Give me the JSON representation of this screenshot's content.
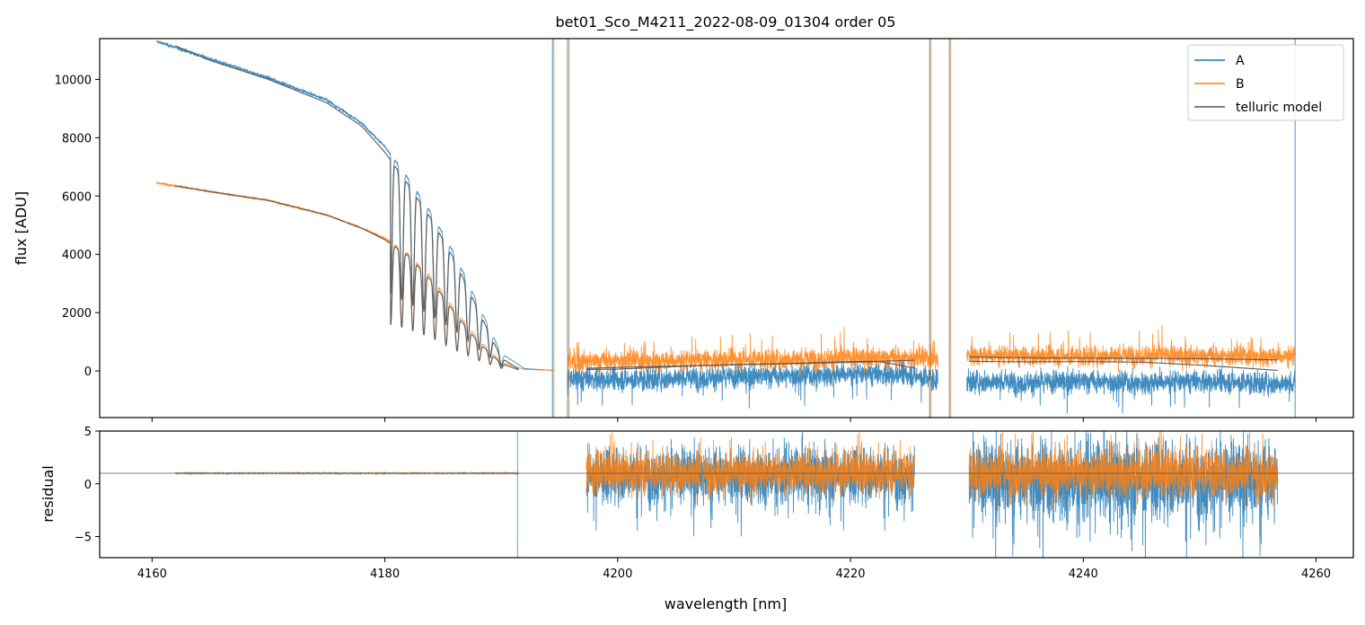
{
  "chart_data": [
    {
      "type": "line",
      "title": "bet01_Sco_M4211_2022-08-09_01304  order 05",
      "xlabel": "",
      "ylabel": "flux [ADU]",
      "xlim": [
        4155.5,
        4263.2
      ],
      "ylim": [
        -1600,
        11400
      ],
      "yticks": [
        0,
        2000,
        4000,
        6000,
        8000,
        10000
      ],
      "legend": {
        "placement": "top-right",
        "entries": [
          "A",
          "B",
          "telluric model"
        ]
      },
      "series": [
        {
          "name": "A",
          "color": "#1f77b4",
          "segments": [
            {
              "x": [
                4160.4,
                4162,
                4165,
                4170,
                4175,
                4178,
                4180,
                4182,
                4184,
                4186,
                4188,
                4190,
                4192,
                4194.5
              ],
              "y": [
                11300,
                11100,
                10700,
                10050,
                9300,
                8500,
                7700,
                6600,
                5400,
                4000,
                2300,
                600,
                80,
                20
              ],
              "absorption_band": [
                4180.5,
                4190.5
              ]
            },
            {
              "x": [
                4195.7,
                4200,
                4205,
                4210,
                4215,
                4220,
                4225,
                4227.5
              ],
              "y": [
                -250,
                -300,
                -250,
                -200,
                -150,
                -100,
                -120,
                -300
              ]
            },
            {
              "x": [
                4230.0,
                4235,
                4240,
                4245,
                4250,
                4255,
                4258.2
              ],
              "y": [
                -350,
                -400,
                -350,
                -400,
                -350,
                -400,
                -450
              ]
            }
          ],
          "spikes_x": [
            4194.4,
            4195.7,
            4226.8,
            4228.5,
            4258.2
          ]
        },
        {
          "name": "B",
          "color": "#ff7f0e",
          "segments": [
            {
              "x": [
                4160.4,
                4162,
                4165,
                4170,
                4175,
                4178,
                4180,
                4182,
                4184,
                4186,
                4188,
                4190,
                4192,
                4194.5
              ],
              "y": [
                6450,
                6350,
                6150,
                5850,
                5350,
                4900,
                4550,
                4000,
                3200,
                2100,
                1100,
                300,
                50,
                20
              ],
              "absorption_band": [
                4180.5,
                4190.5
              ]
            },
            {
              "x": [
                4195.7,
                4200,
                4205,
                4210,
                4215,
                4220,
                4225,
                4227.5
              ],
              "y": [
                300,
                350,
                350,
                400,
                400,
                450,
                450,
                400
              ]
            },
            {
              "x": [
                4230.0,
                4235,
                4240,
                4245,
                4250,
                4255,
                4258.2
              ],
              "y": [
                550,
                500,
                500,
                550,
                500,
                500,
                500
              ]
            }
          ]
        },
        {
          "name": "telluric model",
          "color": "#555555",
          "segments": [
            {
              "x": [
                4162,
                4165,
                4170,
                4175,
                4178,
                4180,
                4182,
                4184,
                4186,
                4188,
                4190,
                4191.5
              ],
              "y": [
                11150,
                10650,
                10000,
                9200,
                8400,
                7500,
                6400,
                5200,
                3800,
                2100,
                450,
                60
              ]
            },
            {
              "x": [
                4162,
                4165,
                4170,
                4175,
                4178,
                4180,
                4182,
                4184,
                4186,
                4188,
                4190,
                4191.5
              ],
              "y": [
                6350,
                6150,
                5850,
                5350,
                4900,
                4500,
                3950,
                3100,
                2000,
                1000,
                250,
                40
              ]
            },
            {
              "x": [
                4197.3,
                4200,
                4205,
                4210,
                4215,
                4220,
                4222.5,
                4225.5
              ],
              "y": [
                90,
                120,
                170,
                210,
                260,
                320,
                330,
                370
              ]
            },
            {
              "x": [
                4197.3,
                4200,
                4205,
                4210,
                4215,
                4220,
                4222.5,
                4225.5
              ],
              "y": [
                50,
                60,
                150,
                220,
                250,
                300,
                320,
                100
              ]
            },
            {
              "x": [
                4230.2,
                4235,
                4240,
                4245,
                4250,
                4256.7
              ],
              "y": [
                480,
                450,
                440,
                430,
                420,
                380
              ]
            },
            {
              "x": [
                4230.2,
                4235,
                4240,
                4245,
                4250,
                4256.7
              ],
              "y": [
                330,
                310,
                320,
                300,
                200,
                20
              ]
            }
          ]
        }
      ]
    },
    {
      "type": "line",
      "title": "",
      "xlabel": "wavelength [nm]",
      "ylabel": "residual",
      "xlim": [
        4155.5,
        4263.2
      ],
      "ylim": [
        -7,
        5
      ],
      "xticks": [
        4160,
        4180,
        4200,
        4220,
        4240,
        4260
      ],
      "yticks": [
        -5,
        0,
        5
      ],
      "reference_line": 1.0,
      "series": [
        {
          "name": "A",
          "color": "#1f77b4",
          "segments": [
            {
              "x": [
                4162,
                4191.5
              ],
              "center": 1.0,
              "noise": 0.05
            },
            {
              "x": [
                4197.3,
                4225.5
              ],
              "center": 0.9,
              "noise": 2.8
            },
            {
              "x": [
                4230.2,
                4256.7
              ],
              "center": 0.5,
              "noise": 4.0
            }
          ]
        },
        {
          "name": "B",
          "color": "#ff7f0e",
          "segments": [
            {
              "x": [
                4162,
                4191.5
              ],
              "center": 1.0,
              "noise": 0.04
            },
            {
              "x": [
                4197.3,
                4225.5
              ],
              "center": 1.0,
              "noise": 2.0
            },
            {
              "x": [
                4230.2,
                4256.7
              ],
              "center": 1.0,
              "noise": 2.4
            }
          ]
        }
      ]
    }
  ]
}
